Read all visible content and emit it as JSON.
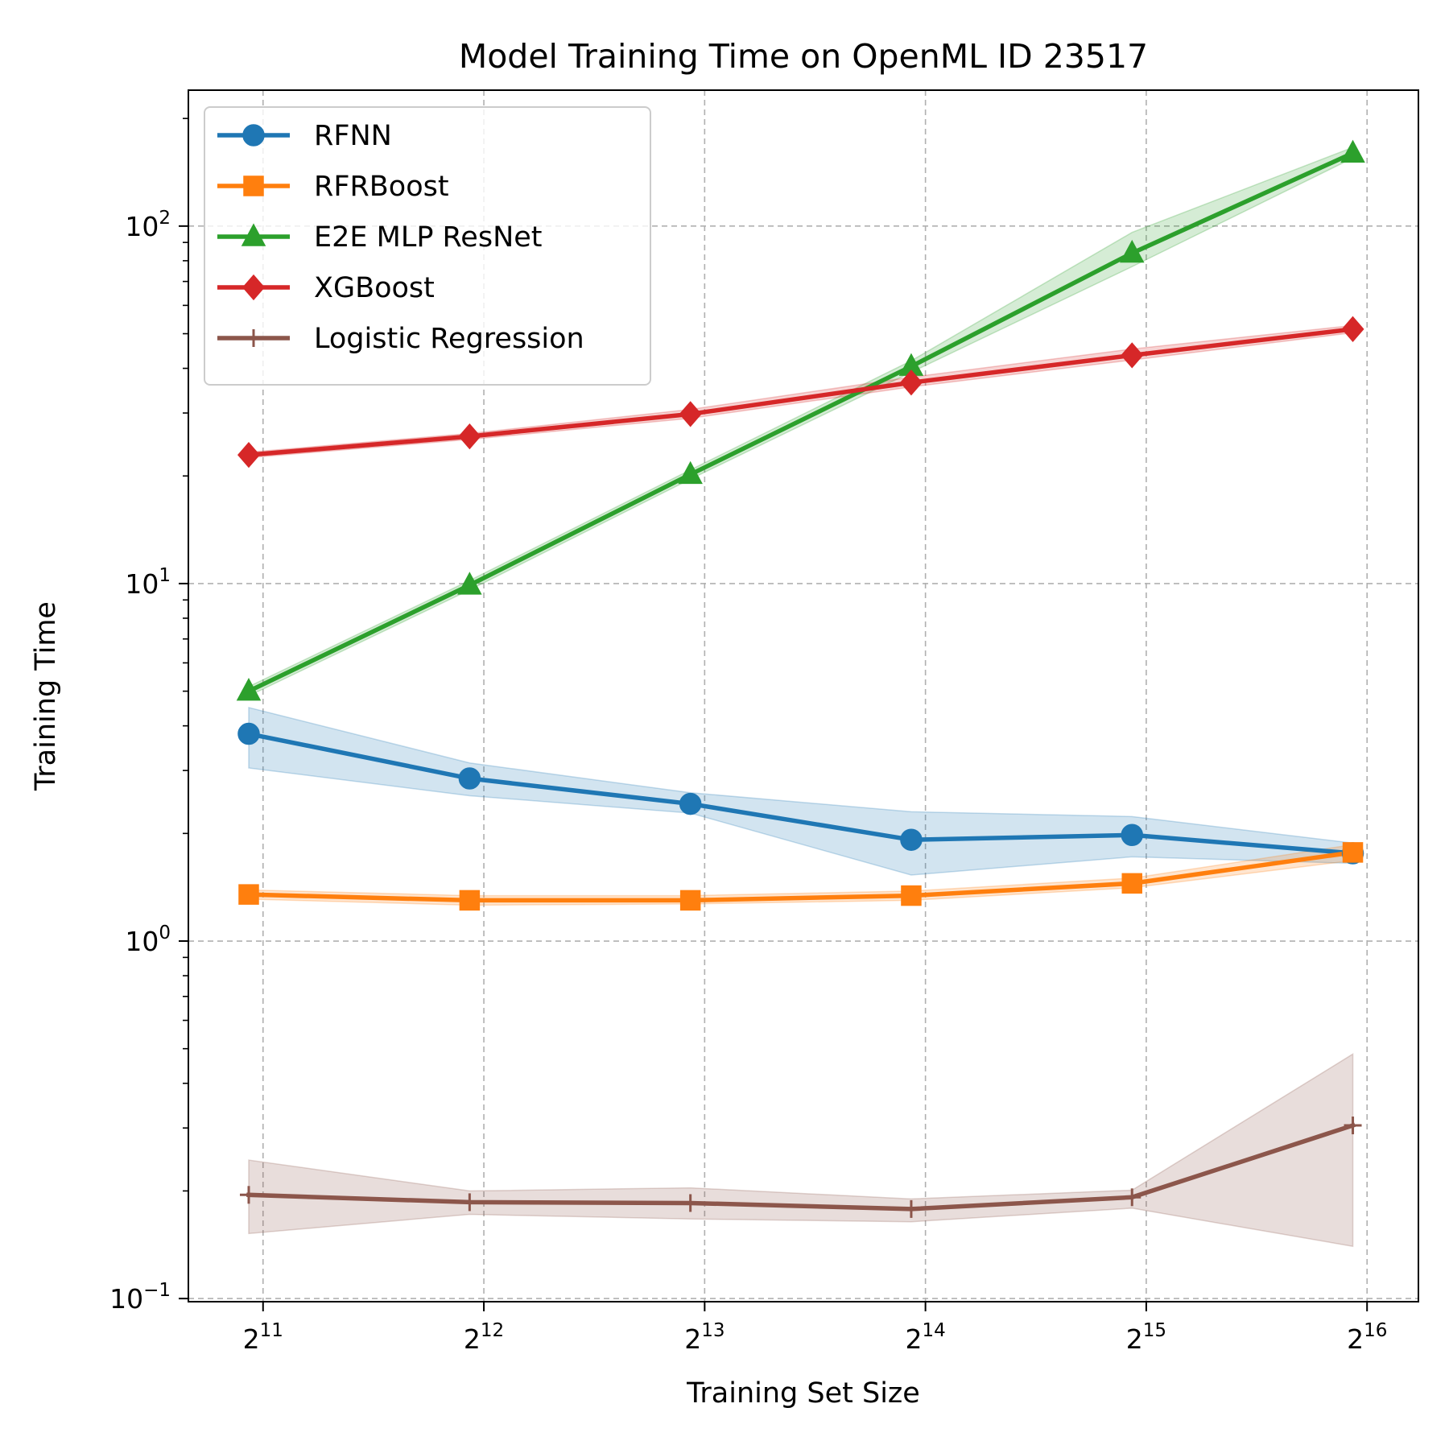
{
  "chart_data": {
    "type": "line",
    "title": "Model Training Time on OpenML ID 23517",
    "xlabel": "Training Set Size",
    "ylabel": "Training Time",
    "x_scale": "log2",
    "y_scale": "log10",
    "x": [
      1958,
      3917,
      7834,
      15668,
      31337,
      62674
    ],
    "xticks": [
      {
        "base": "2",
        "exp": "11",
        "value": 2048
      },
      {
        "base": "2",
        "exp": "12",
        "value": 4096
      },
      {
        "base": "2",
        "exp": "13",
        "value": 8192
      },
      {
        "base": "2",
        "exp": "14",
        "value": 16384
      },
      {
        "base": "2",
        "exp": "15",
        "value": 32768
      },
      {
        "base": "2",
        "exp": "16",
        "value": 65536
      }
    ],
    "yticks": [
      {
        "base": "10",
        "exp": "−1",
        "value": 0.1
      },
      {
        "base": "10",
        "exp": "0",
        "value": 1
      },
      {
        "base": "10",
        "exp": "1",
        "value": 10
      },
      {
        "base": "10",
        "exp": "2",
        "value": 100
      }
    ],
    "ylim": [
      0.098,
      240
    ],
    "xlim": [
      1620,
      77000
    ],
    "grid": true,
    "legend_position": "top-left",
    "series": [
      {
        "name": "RFNN",
        "color": "#1f77b4",
        "marker": "circle",
        "values": [
          3.8,
          2.85,
          2.42,
          1.92,
          1.98,
          1.76
        ],
        "lower": [
          3.05,
          2.55,
          2.28,
          1.53,
          1.72,
          1.65
        ],
        "upper": [
          4.5,
          3.15,
          2.6,
          2.3,
          2.23,
          1.88
        ]
      },
      {
        "name": "RFRBoost",
        "color": "#ff7f0e",
        "marker": "square",
        "values": [
          1.35,
          1.3,
          1.3,
          1.34,
          1.45,
          1.77
        ],
        "lower": [
          1.31,
          1.26,
          1.27,
          1.3,
          1.41,
          1.68
        ],
        "upper": [
          1.39,
          1.34,
          1.34,
          1.38,
          1.5,
          1.86
        ]
      },
      {
        "name": "E2E MLP ResNet",
        "color": "#2ca02c",
        "marker": "triangle",
        "values": [
          5.0,
          9.9,
          20.2,
          40.5,
          84.0,
          160.0
        ],
        "lower": [
          4.85,
          9.6,
          19.6,
          39.0,
          77.0,
          155.0
        ],
        "upper": [
          5.15,
          10.2,
          20.8,
          42.0,
          96.0,
          166.0
        ]
      },
      {
        "name": "XGBoost",
        "color": "#d62728",
        "marker": "diamond",
        "values": [
          22.9,
          25.8,
          29.8,
          36.5,
          43.5,
          51.5
        ],
        "lower": [
          22.5,
          25.3,
          29.0,
          35.5,
          42.2,
          50.3
        ],
        "upper": [
          23.3,
          26.3,
          30.7,
          37.8,
          45.3,
          52.7
        ]
      },
      {
        "name": "Logistic Regression",
        "color": "#8c564b",
        "marker": "plus",
        "values": [
          0.195,
          0.186,
          0.185,
          0.178,
          0.192,
          0.305
        ],
        "lower": [
          0.152,
          0.172,
          0.167,
          0.164,
          0.179,
          0.14
        ],
        "upper": [
          0.244,
          0.2,
          0.204,
          0.19,
          0.201,
          0.483
        ]
      }
    ]
  }
}
